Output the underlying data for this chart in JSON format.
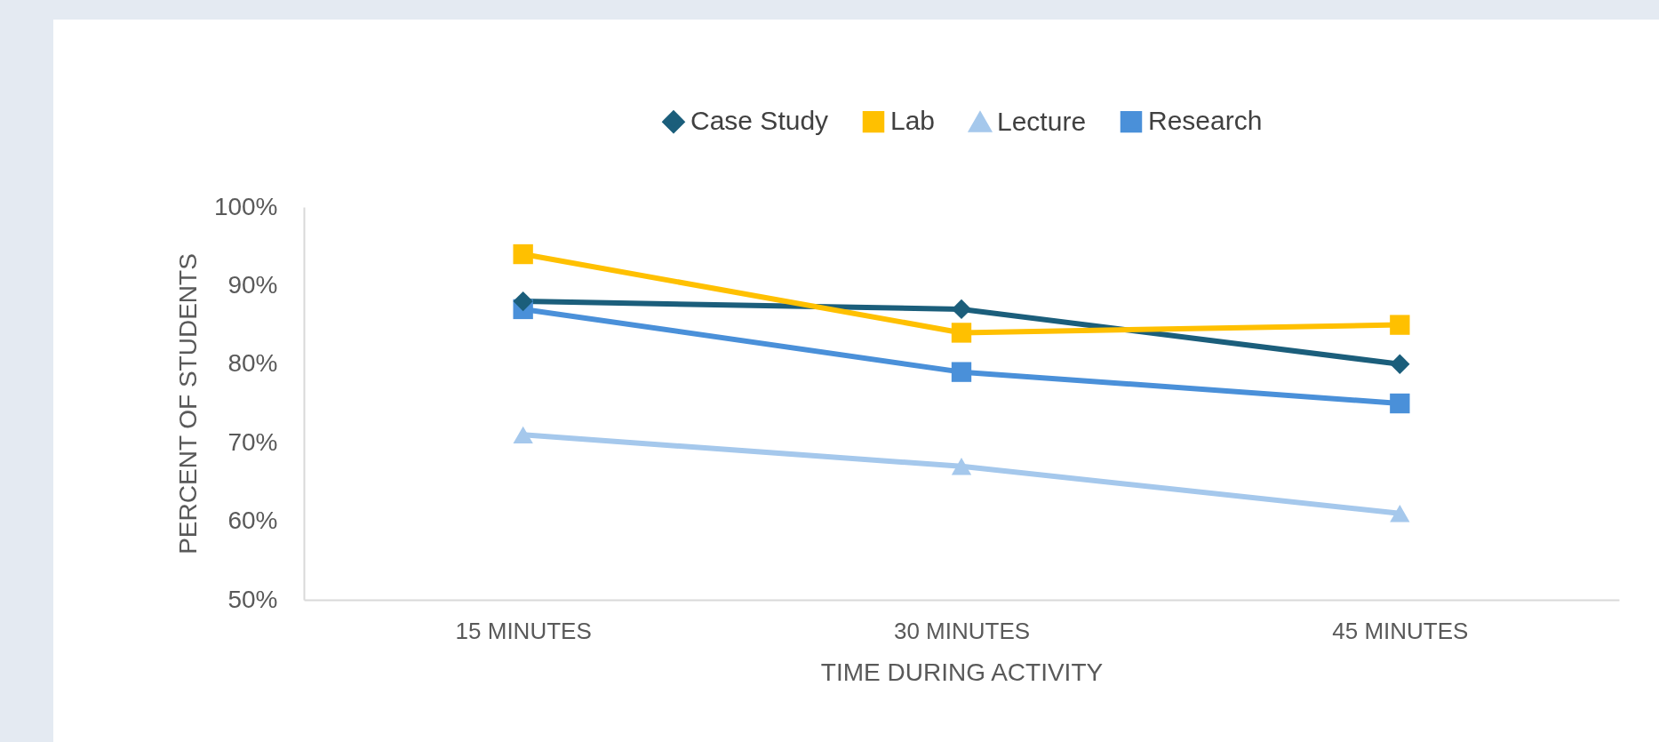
{
  "chart_data": {
    "type": "line",
    "xlabel": "TIME DURING ACTIVITY",
    "ylabel": "PERCENT OF STUDENTS",
    "categories": [
      "15 MINUTES",
      "30 MINUTES",
      "45 MINUTES"
    ],
    "ylim": [
      50,
      100
    ],
    "yticks": [
      {
        "value": 50,
        "label": "50%"
      },
      {
        "value": 60,
        "label": "60%"
      },
      {
        "value": 70,
        "label": "70%"
      },
      {
        "value": 80,
        "label": "80%"
      },
      {
        "value": 90,
        "label": "90%"
      },
      {
        "value": 100,
        "label": "100%"
      }
    ],
    "grid": false,
    "legend": "top",
    "line_style": "solid",
    "series": [
      {
        "name": "Case Study",
        "color": "#1b5e7b",
        "marker": "diamond",
        "values": [
          88,
          87,
          80
        ]
      },
      {
        "name": "Lab",
        "color": "#ffc000",
        "marker": "square",
        "values": [
          94,
          84,
          85
        ]
      },
      {
        "name": "Lecture",
        "color": "#a5c8ec",
        "marker": "triangle",
        "values": [
          71,
          67,
          61
        ]
      },
      {
        "name": "Research",
        "color": "#4a90d9",
        "marker": "square",
        "values": [
          87,
          79,
          75
        ]
      }
    ]
  }
}
